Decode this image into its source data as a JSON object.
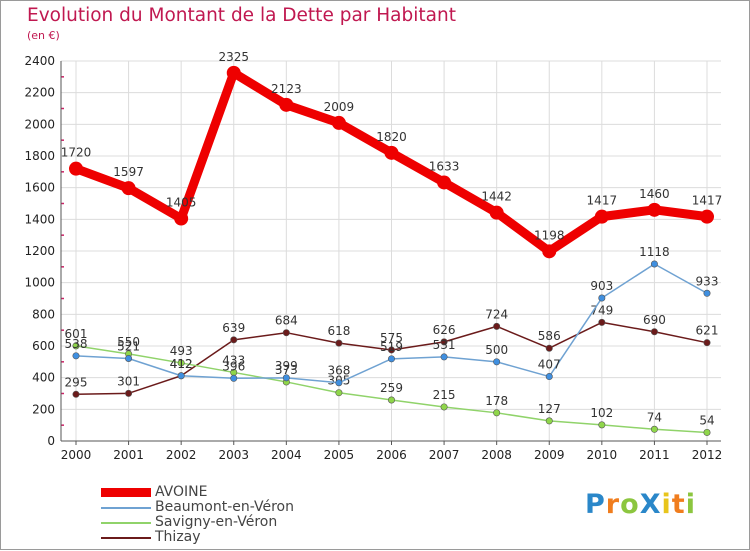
{
  "title": "Evolution du Montant de la Dette par Habitant",
  "subtitle": "(en €)",
  "logo": {
    "text": "ProXiti",
    "colors": [
      "#2a87c9",
      "#f07d1e",
      "#8cc63f",
      "#2a87c9",
      "#e8c51c",
      "#f07d1e",
      "#8cc63f"
    ]
  },
  "chart_data": {
    "type": "line",
    "x": [
      "2000",
      "2001",
      "2002",
      "2003",
      "2004",
      "2005",
      "2006",
      "2007",
      "2008",
      "2009",
      "2010",
      "2011",
      "2012"
    ],
    "yticks": [
      "0",
      "200",
      "400",
      "600",
      "800",
      "1000",
      "1200",
      "1400",
      "1600",
      "1800",
      "2000",
      "2200",
      "2400"
    ],
    "ylim": [
      0,
      2400
    ],
    "grid": true,
    "legend_position": "bottom-left",
    "series": [
      {
        "name": "Thizay",
        "color": "#6b1b1b",
        "point_color": "#6b1b1b",
        "weight": "thin",
        "values": [
          295,
          301,
          412,
          639,
          684,
          618,
          575,
          626,
          724,
          586,
          749,
          690,
          621
        ],
        "labels": [
          "295",
          "301",
          "412",
          "639",
          "684",
          "618",
          "575",
          "626",
          "724",
          "586",
          "749",
          "690",
          "621"
        ]
      },
      {
        "name": "Savigny-en-Véron",
        "color": "#90d36a",
        "point_color": "#8fd64a",
        "weight": "thin",
        "values": [
          601,
          550,
          493,
          433,
          373,
          305,
          259,
          215,
          178,
          127,
          102,
          74,
          54
        ],
        "labels": [
          "601",
          "550",
          "493",
          "433",
          "373",
          "305",
          "259",
          "215",
          "178",
          "127",
          "102",
          "74",
          "54"
        ]
      },
      {
        "name": "Beaumont-en-Véron",
        "color": "#6fa2d2",
        "point_color": "#3f8fe0",
        "weight": "thin",
        "values": [
          538,
          521,
          412,
          396,
          399,
          368,
          519,
          531,
          500,
          407,
          903,
          1118,
          933
        ],
        "labels": [
          "538",
          "521",
          "412",
          "396",
          "399",
          "368",
          "519",
          "531",
          "500",
          "407",
          "903",
          "1118",
          "933"
        ]
      },
      {
        "name": "AVOINE",
        "color": "#ee0000",
        "point_color": "#ee0000",
        "weight": "thick",
        "values": [
          1720,
          1597,
          1405,
          2325,
          2123,
          2009,
          1820,
          1633,
          1442,
          1198,
          1417,
          1460,
          1417
        ],
        "labels": [
          "1720",
          "1597",
          "1405",
          "2325",
          "2123",
          "2009",
          "1820",
          "1633",
          "1442",
          "1198",
          "1417",
          "1460",
          "1417"
        ]
      }
    ],
    "legend": [
      {
        "name": "AVOINE",
        "color": "#ee0000",
        "weight": "thick"
      },
      {
        "name": "Beaumont-en-Véron",
        "color": "#6fa2d2",
        "weight": "thin"
      },
      {
        "name": "Savigny-en-Véron",
        "color": "#90d36a",
        "weight": "thin"
      },
      {
        "name": "Thizay",
        "color": "#6b1b1b",
        "weight": "thin"
      }
    ]
  }
}
